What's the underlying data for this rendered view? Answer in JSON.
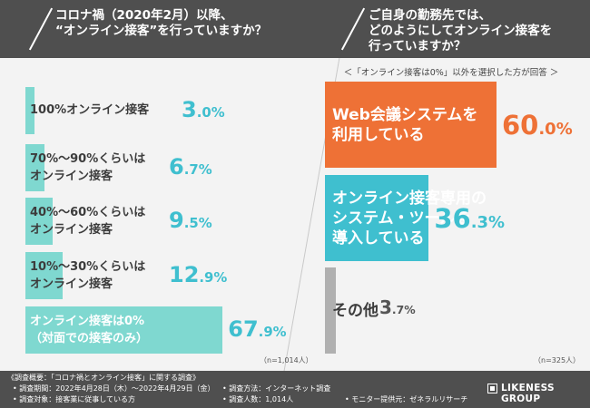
{
  "header": {
    "left_question_line1": "コロナ禍（2020年2月）以降、",
    "left_question_line2": "“オンライン接客”を行っていますか？",
    "right_question_line1": "ご自身の勤務先では、",
    "right_question_line2": "どのようにしてオンライン接客を",
    "right_question_line3": "行っていますか？"
  },
  "right_note": "＜「オンライン接客は0%」以外を選択した方が回答 ＞",
  "chart_data": [
    {
      "type": "bar",
      "orientation": "horizontal",
      "title": "コロナ禍（2020年2月）以降、“オンライン接客”を行っていますか？",
      "n_label": "（n=1,014人）",
      "unit": "%",
      "xlim": [
        0,
        100
      ],
      "color": "#7fd8d0",
      "categories": [
        {
          "line1": "100%オンライン接客",
          "line2": ""
        },
        {
          "line1": "70%～90%くらいは",
          "line2": "オンライン接客"
        },
        {
          "line1": "40%～60%くらいは",
          "line2": "オンライン接客"
        },
        {
          "line1": "10%～30%くらいは",
          "line2": "オンライン接客"
        },
        {
          "line1": "オンライン接客は0%",
          "line2": "（対面での接客のみ）"
        }
      ],
      "values": [
        3.0,
        6.7,
        9.5,
        12.9,
        67.9
      ],
      "value_int": [
        "3",
        "6",
        "9",
        "12",
        "67"
      ],
      "value_dec": [
        ".0%",
        ".7%",
        ".5%",
        ".9%",
        ".9%"
      ]
    },
    {
      "type": "bar",
      "orientation": "horizontal",
      "title": "ご自身の勤務先では、どのようにしてオンライン接客を行っていますか？",
      "n_label": "（n=325人）",
      "unit": "%",
      "xlim": [
        0,
        100
      ],
      "categories": [
        {
          "line1": "Web会議システムを",
          "line2": "利用している",
          "line3": ""
        },
        {
          "line1": "オンライン接客専用の",
          "line2": "システム・ツールを",
          "line3": "導入している"
        },
        {
          "line1": "その他",
          "line2": "",
          "line3": ""
        }
      ],
      "values": [
        60.0,
        36.3,
        3.7
      ],
      "value_int": [
        "60",
        "36",
        "3"
      ],
      "value_dec": [
        ".0%",
        ".3%",
        ".7%"
      ],
      "colors": [
        "#ee7136",
        "#3fbfcf",
        "#b0b0b0"
      ],
      "value_colors": [
        "#ee7136",
        "#3fbfcf",
        "#555555"
      ]
    }
  ],
  "footer": {
    "title": "《調査概要：「コロナ禍とオンライン接客」に関する調査》",
    "period": "• 調査期間：2022年4月28日（木）～2022年4月29日（金）",
    "target": "• 調査対象：接客業に従事している方",
    "method": "• 調査方法：インターネット調査",
    "count": "• 調査人数：1,014人",
    "provider": "• モニター提供元：ゼネラルリサーチ",
    "logo": "LIKENESS GROUP"
  }
}
